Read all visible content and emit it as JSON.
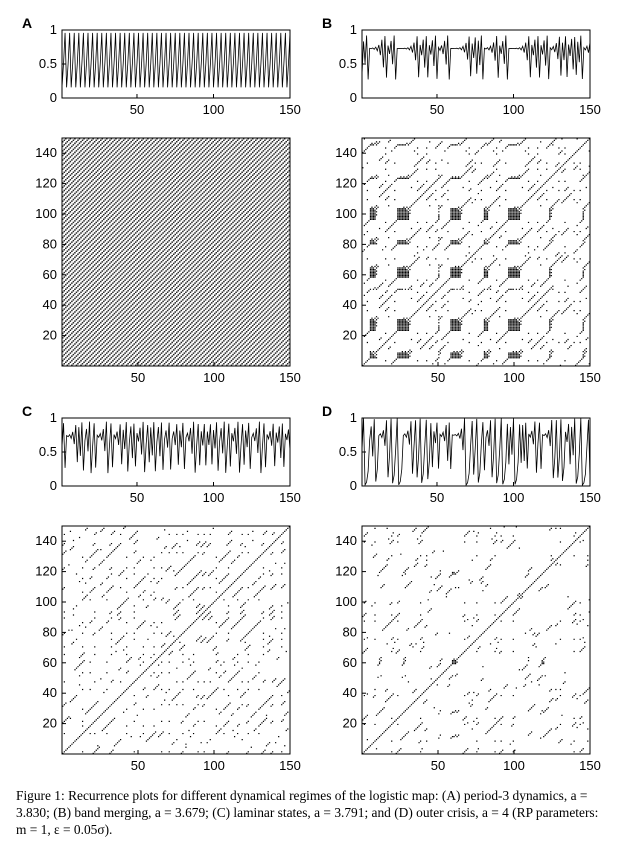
{
  "figure": {
    "panels": [
      {
        "label": "A",
        "regime": "period-3 dynamics",
        "a": 3.83,
        "kind": "period3"
      },
      {
        "label": "B",
        "regime": "band merging",
        "a": 3.679,
        "kind": "band"
      },
      {
        "label": "C",
        "regime": "laminar states",
        "a": 3.791,
        "kind": "laminar"
      },
      {
        "label": "D",
        "regime": "outer crisis",
        "a": 4,
        "kind": "chaos"
      }
    ],
    "ts_yticks": [
      "0",
      "0.5",
      "1"
    ],
    "ts_xticks": [
      "50",
      "100",
      "150"
    ],
    "rp_yticks": [
      "20",
      "40",
      "60",
      "80",
      "100",
      "120",
      "140"
    ],
    "rp_xticks": [
      "50",
      "100",
      "150"
    ]
  },
  "chart_data": [
    {
      "type": "line",
      "panel": "A",
      "x": [
        1,
        150
      ],
      "ylim": [
        0,
        1
      ],
      "xlim": [
        1,
        150
      ],
      "note": "time series x(n) of logistic map"
    },
    {
      "type": "heatmap",
      "panel": "A",
      "xlim": [
        1,
        150
      ],
      "ylim": [
        1,
        150
      ],
      "note": "recurrence plot"
    },
    {
      "type": "line",
      "panel": "B",
      "x": [
        1,
        150
      ],
      "ylim": [
        0,
        1
      ],
      "xlim": [
        1,
        150
      ]
    },
    {
      "type": "heatmap",
      "panel": "B",
      "xlim": [
        1,
        150
      ],
      "ylim": [
        1,
        150
      ]
    },
    {
      "type": "line",
      "panel": "C",
      "x": [
        1,
        150
      ],
      "ylim": [
        0,
        1
      ],
      "xlim": [
        1,
        150
      ]
    },
    {
      "type": "heatmap",
      "panel": "C",
      "xlim": [
        1,
        150
      ],
      "ylim": [
        1,
        150
      ]
    },
    {
      "type": "line",
      "panel": "D",
      "x": [
        1,
        150
      ],
      "ylim": [
        0,
        1
      ],
      "xlim": [
        1,
        150
      ]
    },
    {
      "type": "heatmap",
      "panel": "D",
      "xlim": [
        1,
        150
      ],
      "ylim": [
        1,
        150
      ]
    }
  ],
  "caption": {
    "label": "Figure 1:",
    "text": "Recurrence plots for different dynamical regimes of the logistic map: (A) period-3 dynamics, a = 3.830; (B) band merging, a = 3.679; (C) laminar states, a = 3.791; and (D) outer crisis, a = 4 (RP parameters: m = 1, ε = 0.05σ)."
  }
}
